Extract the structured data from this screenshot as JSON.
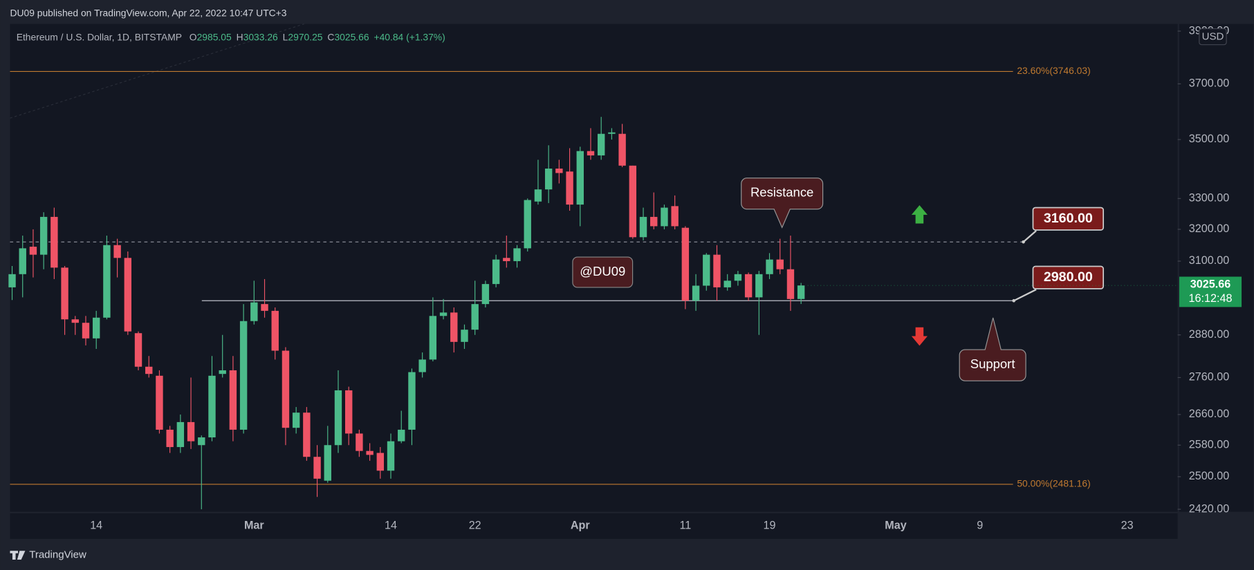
{
  "header": {
    "publisher": "DU09 published on TradingView.com, Apr 22, 2022 10:47 UTC+3"
  },
  "legend": {
    "symbol": "Ethereum / U.S. Dollar, 1D, BITSTAMP",
    "fields": [
      {
        "key": "O",
        "value": "2985.05"
      },
      {
        "key": "H",
        "value": "3033.26"
      },
      {
        "key": "L",
        "value": "2970.25"
      },
      {
        "key": "C",
        "value": "3025.66"
      }
    ],
    "change": "+40.84 (+1.37%)"
  },
  "chart_data": {
    "type": "candlestick",
    "categories": [
      null,
      null,
      null,
      null,
      null,
      null,
      null,
      null,
      "14",
      null,
      null,
      null,
      null,
      null,
      null,
      null,
      null,
      null,
      null,
      null,
      null,
      null,
      null,
      "Mar",
      null,
      null,
      null,
      null,
      null,
      null,
      null,
      null,
      null,
      null,
      null,
      null,
      "14",
      null,
      null,
      null,
      null,
      null,
      null,
      null,
      "22",
      null,
      null,
      null,
      null,
      null,
      null,
      null,
      null,
      null,
      "Apr",
      null,
      null,
      null,
      null,
      null,
      null,
      null,
      null,
      null,
      "11",
      null,
      null,
      null,
      null,
      null,
      null,
      null,
      "19",
      null,
      null,
      null,
      null,
      null,
      null,
      null,
      null,
      null,
      null,
      null,
      "May",
      null,
      null,
      null,
      null,
      null,
      null,
      null,
      "9",
      null,
      null,
      null,
      null,
      null,
      null,
      null,
      null,
      null,
      null,
      null,
      null,
      null,
      "23",
      null,
      null,
      null,
      null
    ],
    "open": [
      3020,
      3060,
      3145,
      3120,
      3240,
      3080,
      2925,
      2915,
      2870,
      2930,
      3150,
      3110,
      2885,
      2790,
      2765,
      2620,
      2575,
      2640,
      2580,
      2600,
      2770,
      2780,
      2620,
      2920,
      2970,
      2950,
      2835,
      2625,
      2665,
      2550,
      2490,
      2580,
      2725,
      2610,
      2565,
      2560,
      2515,
      2590,
      2620,
      2775,
      2810,
      2935,
      2945,
      2860,
      2895,
      2970,
      3030,
      3110,
      3100,
      3140,
      3290,
      3330,
      3400,
      3390,
      3280,
      3460,
      3445,
      3520,
      3520,
      3410,
      3175,
      3240,
      3210,
      3275,
      3205,
      2980,
      3025,
      3120,
      3020,
      3040,
      3060,
      2990,
      3060,
      3105,
      3075,
      2985.05,
      null,
      null,
      null,
      null,
      null,
      null,
      null,
      null,
      null,
      null,
      null,
      null,
      null,
      null,
      null,
      null,
      null,
      null,
      null,
      null,
      null,
      null,
      null,
      null,
      null,
      null,
      null,
      null,
      null,
      null,
      null,
      null,
      null,
      null,
      null
    ],
    "high": [
      3085,
      3180,
      3200,
      3255,
      3270,
      3085,
      2935,
      2935,
      2950,
      3180,
      3170,
      3130,
      2890,
      2820,
      2780,
      2630,
      2660,
      2760,
      2605,
      2820,
      2880,
      2820,
      2970,
      3040,
      3045,
      2960,
      2845,
      2680,
      2680,
      2580,
      2630,
      2780,
      2735,
      2620,
      2585,
      2575,
      2610,
      2670,
      2785,
      2830,
      2990,
      2985,
      2960,
      2910,
      3040,
      3040,
      3120,
      3180,
      3150,
      3300,
      3430,
      3480,
      3430,
      3470,
      3475,
      3540,
      3580,
      3540,
      3555,
      3410,
      3270,
      3320,
      3280,
      3310,
      3210,
      3060,
      3125,
      3150,
      3060,
      3070,
      3065,
      3070,
      3125,
      3170,
      3180,
      3033.26,
      null,
      null,
      null,
      null,
      null,
      null,
      null,
      null,
      null,
      null,
      null,
      null,
      null,
      null,
      null,
      null,
      null,
      null,
      null,
      null,
      null,
      null,
      null,
      null,
      null,
      null,
      null,
      null,
      null,
      null,
      null,
      null,
      null,
      null,
      null
    ],
    "low": [
      2982,
      2990,
      3050,
      3075,
      3045,
      2880,
      2880,
      2850,
      2840,
      2925,
      3050,
      2880,
      2780,
      2760,
      2610,
      2560,
      2560,
      2570,
      2420,
      2590,
      2760,
      2590,
      2610,
      2910,
      2930,
      2810,
      2580,
      2610,
      2540,
      2450,
      2485,
      2560,
      2580,
      2550,
      2540,
      2495,
      2495,
      2585,
      2580,
      2760,
      2805,
      2925,
      2830,
      2840,
      2880,
      2960,
      3020,
      3080,
      3080,
      3130,
      3280,
      3285,
      3350,
      3260,
      3210,
      3430,
      3430,
      3500,
      3405,
      3170,
      3165,
      3200,
      3200,
      3200,
      2955,
      2950,
      3010,
      2980,
      3010,
      3025,
      2980,
      2880,
      3045,
      3060,
      2950,
      2970.25,
      null,
      null,
      null,
      null,
      null,
      null,
      null,
      null,
      null,
      null,
      null,
      null,
      null,
      null,
      null,
      null,
      null,
      null,
      null,
      null,
      null,
      null,
      null,
      null,
      null,
      null,
      null,
      null,
      null,
      null,
      null,
      null,
      null,
      null,
      null
    ],
    "close": [
      3060,
      3140,
      3120,
      3240,
      3080,
      2925,
      2915,
      2870,
      2930,
      3150,
      3110,
      2890,
      2790,
      2770,
      2620,
      2575,
      2640,
      2590,
      2600,
      2765,
      2780,
      2620,
      2920,
      2975,
      2950,
      2835,
      2625,
      2665,
      2550,
      2495,
      2580,
      2725,
      2610,
      2565,
      2555,
      2515,
      2590,
      2620,
      2775,
      2810,
      2935,
      2945,
      2860,
      2895,
      2970,
      3030,
      3105,
      3100,
      3140,
      3295,
      3330,
      3400,
      3385,
      3280,
      3460,
      3445,
      3520,
      3525,
      3410,
      3175,
      3240,
      3210,
      3270,
      3210,
      2980,
      3025,
      3120,
      3020,
      3040,
      3060,
      2990,
      3060,
      3105,
      3075,
      2985,
      3025.66,
      null,
      null,
      null,
      null,
      null,
      null,
      null,
      null,
      null,
      null,
      null,
      null,
      null,
      null,
      null,
      null,
      null,
      null,
      null,
      null,
      null,
      null,
      null,
      null,
      null,
      null,
      null,
      null,
      null,
      null,
      null,
      null,
      null,
      null,
      null
    ],
    "up_color": "#4cbb8a",
    "down_color": "#ef5466",
    "log_scale": true,
    "grid": false,
    "ylim": [
      2416,
      3928
    ],
    "yticks": [
      {
        "value": 3900,
        "label": "3900.00"
      },
      {
        "value": 3700,
        "label": "3700.00"
      },
      {
        "value": 3500,
        "label": "3500.00"
      },
      {
        "value": 3300,
        "label": "3300.00"
      },
      {
        "value": 3200,
        "label": "3200.00"
      },
      {
        "value": 3100,
        "label": "3100.00"
      },
      {
        "value": 2880,
        "label": "2880.00"
      },
      {
        "value": 2760,
        "label": "2760.00"
      },
      {
        "value": 2660,
        "label": "2660.00"
      },
      {
        "value": 2580,
        "label": "2580.00"
      },
      {
        "value": 2500,
        "label": "2500.00"
      },
      {
        "value": 2420,
        "label": "2420.00"
      }
    ],
    "currency": "USD",
    "levels": [
      {
        "value": 3746.03,
        "label": "23.60%(3746.03)",
        "color": "#c07a30"
      },
      {
        "value": 2481.16,
        "label": "50.00%(2481.16)",
        "color": "#c07a30"
      }
    ],
    "resistance": {
      "value": 3160,
      "label": "3160.00"
    },
    "support": {
      "value": 2980,
      "label": "2980.00"
    },
    "last_price": {
      "value": 3025.66,
      "countdown": "16:12:48",
      "color": "#1e9a55"
    },
    "annotations": {
      "resistance": "Resistance",
      "support": "Support",
      "watermark": "@DU09"
    }
  },
  "footer": {
    "brand": "TradingView"
  }
}
